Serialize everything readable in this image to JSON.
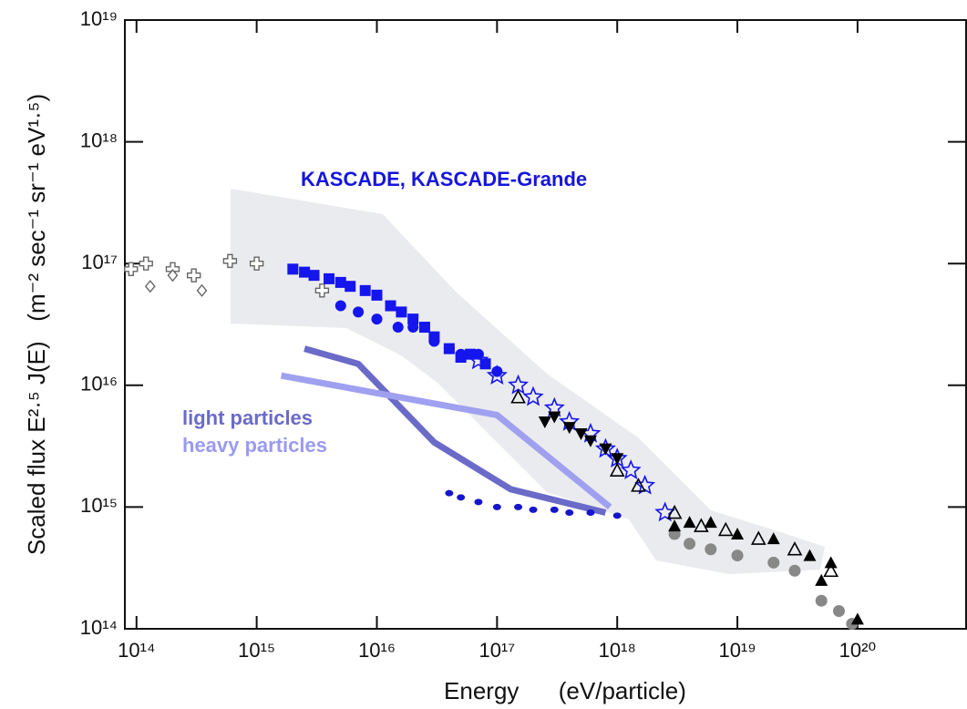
{
  "chart_data": {
    "type": "scatter",
    "y_label": "Scaled flux E²·⁵ J(E)   (m⁻² sec⁻¹ sr⁻¹ eV¹·⁵)",
    "x_label": "Energy      (eV/particle)",
    "log_x": true,
    "log_y": true,
    "xlim": [
      80000000000000.0,
      8e+20
    ],
    "ylim": [
      100000000000000.0,
      1e+19
    ],
    "xticks": [
      {
        "value": 100000000000000.0,
        "label": "10¹⁴"
      },
      {
        "value": 1000000000000000.0,
        "label": "10¹⁵"
      },
      {
        "value": 1e+16,
        "label": "10¹⁶"
      },
      {
        "value": 1e+17,
        "label": "10¹⁷"
      },
      {
        "value": 1e+18,
        "label": "10¹⁸"
      },
      {
        "value": 1e+19,
        "label": "10¹⁹"
      },
      {
        "value": 1e+20,
        "label": "10²⁰"
      }
    ],
    "yticks": [
      {
        "value": 100000000000000.0,
        "label": "10¹⁴"
      },
      {
        "value": 1000000000000000.0,
        "label": "10¹⁵"
      },
      {
        "value": 1e+16,
        "label": "10¹⁶"
      },
      {
        "value": 1e+17,
        "label": "10¹⁷"
      },
      {
        "value": 1e+18,
        "label": "10¹⁸"
      },
      {
        "value": 1e+19,
        "label": "10¹⁹"
      }
    ],
    "annotations": [
      {
        "text": "KASCADE, KASCADE-Grande",
        "color": "#1515dd"
      },
      {
        "text": "light particles",
        "color": "#6a6ac8"
      },
      {
        "text": "heavy particles",
        "color": "#9a9af0"
      }
    ],
    "series": [
      {
        "marker": "line",
        "color": "#6a6ac8",
        "x": [
          2500000000000000.0,
          7000000000000000.0,
          3e+16,
          1.3e+17,
          8e+17
        ],
        "values": [
          2e+16,
          1.5e+16,
          3400000000000000.0,
          1400000000000000.0,
          900000000000000.0
        ]
      },
      {
        "marker": "line",
        "color": "#a0a0f0",
        "x": [
          1600000000000000.0,
          1e+17,
          8.7e+17
        ],
        "values": [
          1.2e+16,
          5700000000000000.0,
          1000000000000000.0
        ]
      },
      {
        "marker": "cross-open",
        "color": "#666666",
        "x": [
          90000000000000.0,
          120000000000000.0,
          200000000000000.0,
          300000000000000.0,
          600000000000000.0,
          1000000000000000.0,
          3500000000000000.0
        ],
        "values": [
          9e+16,
          1e+17,
          9e+16,
          8e+16,
          1.05e+17,
          1e+17,
          6e+16
        ]
      },
      {
        "marker": "diamond-open",
        "color": "#666666",
        "x": [
          130000000000000.0,
          200000000000000.0,
          350000000000000.0
        ],
        "values": [
          6.5e+16,
          8e+16,
          6e+16
        ]
      },
      {
        "marker": "square",
        "color": "#1515ee",
        "x": [
          2000000000000000.0,
          2500000000000000.0,
          3000000000000000.0,
          4000000000000000.0,
          5000000000000000.0,
          6000000000000000.0,
          8000000000000000.0,
          1e+16,
          1.3e+16,
          1.6e+16,
          2e+16,
          2.5e+16,
          3e+16,
          4e+16,
          5e+16,
          6e+16,
          8e+16
        ],
        "values": [
          9e+16,
          8.5e+16,
          8e+16,
          7.5e+16,
          7e+16,
          6.5e+16,
          6e+16,
          5.5e+16,
          4.5e+16,
          4e+16,
          3.5e+16,
          3e+16,
          2.5e+16,
          2e+16,
          1.7e+16,
          1.8e+16,
          1.5e+16
        ]
      },
      {
        "marker": "circle",
        "color": "#1515ee",
        "x": [
          5000000000000000.0,
          7000000000000000.0,
          1e+16,
          1.5e+16,
          2e+16,
          3e+16,
          4e+16,
          5e+16,
          7e+16,
          1e+17
        ],
        "values": [
          4.5e+16,
          4e+16,
          3.5e+16,
          3e+16,
          3e+16,
          2.3e+16,
          2e+16,
          1.8e+16,
          1.8e+16,
          1.3e+16
        ]
      },
      {
        "marker": "star-open",
        "color": "#1515ee",
        "x": [
          7e+16,
          1e+17,
          1.5e+17,
          2e+17,
          3e+17,
          4e+17,
          6e+17,
          8e+17,
          1e+18,
          1.3e+18,
          1.7e+18,
          2.5e+18
        ],
        "values": [
          1.6e+16,
          1.2e+16,
          1e+16,
          8000000000000000.0,
          6500000000000000.0,
          5000000000000000.0,
          4000000000000000.0,
          3000000000000000.0,
          2500000000000000.0,
          2000000000000000.0,
          1500000000000000.0,
          900000000000000.0
        ]
      },
      {
        "marker": "dot",
        "color": "#1515cc",
        "x": [
          4e+16,
          5e+16,
          7e+16,
          1e+17,
          1.5e+17,
          2e+17,
          3e+17,
          4e+17,
          6e+17,
          1e+18
        ],
        "values": [
          1300000000000000.0,
          1200000000000000.0,
          1100000000000000.0,
          1000000000000000.0,
          1000000000000000.0,
          950000000000000.0,
          950000000000000.0,
          900000000000000.0,
          900000000000000.0,
          850000000000000.0
        ]
      },
      {
        "marker": "tri-down",
        "color": "#000000",
        "x": [
          2.5e+17,
          3e+17,
          4e+17,
          5e+17,
          6e+17,
          8e+17,
          1e+18
        ],
        "values": [
          5000000000000000.0,
          5500000000000000.0,
          4500000000000000.0,
          4000000000000000.0,
          3500000000000000.0,
          3000000000000000.0,
          2500000000000000.0
        ]
      },
      {
        "marker": "tri-open",
        "color": "#000000",
        "x": [
          1.5e+17,
          1e+18,
          1.5e+18,
          3e+18,
          5e+18,
          8e+18,
          1.5e+19,
          3e+19,
          6e+19
        ],
        "values": [
          8000000000000000.0,
          2000000000000000.0,
          1500000000000000.0,
          900000000000000.0,
          700000000000000.0,
          650000000000000.0,
          550000000000000.0,
          450000000000000.0,
          300000000000000.0
        ]
      },
      {
        "marker": "gray-circle",
        "color": "#888888",
        "x": [
          3e+18,
          4e+18,
          6e+18,
          1e+19,
          2e+19,
          3e+19,
          5e+19,
          7e+19,
          9e+19
        ],
        "values": [
          600000000000000.0,
          500000000000000.0,
          450000000000000.0,
          400000000000000.0,
          350000000000000.0,
          300000000000000.0,
          170000000000000.0,
          140000000000000.0,
          110000000000000.0
        ]
      },
      {
        "marker": "tri",
        "color": "#000000",
        "x": [
          3e+18,
          4e+18,
          6e+18,
          1e+19,
          2e+19,
          4e+19,
          5e+19,
          6e+19,
          1e+20
        ],
        "values": [
          700000000000000.0,
          750000000000000.0,
          750000000000000.0,
          600000000000000.0,
          550000000000000.0,
          400000000000000.0,
          250000000000000.0,
          350000000000000.0,
          120000000000000.0
        ]
      }
    ]
  }
}
